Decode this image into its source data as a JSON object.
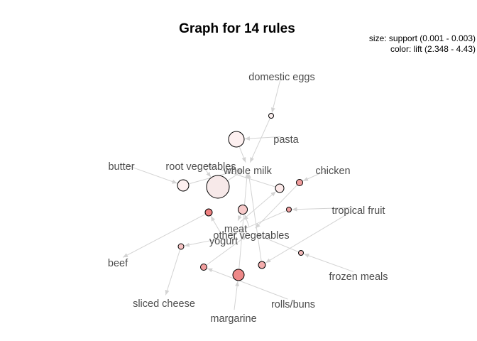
{
  "title": "Graph for 14 rules",
  "legend": {
    "size_text": "size: support (0.001 - 0.003)",
    "color_text": "color: lift (2.348 - 4.43)"
  },
  "colors": {
    "edge": "#d3d3d3",
    "label": "#4d4d4d",
    "lift_low": "#fcefef",
    "lift_high": "#ee8080"
  },
  "items": [
    {
      "id": "domestic-eggs",
      "label": "domestic eggs"
    },
    {
      "id": "pasta",
      "label": "pasta"
    },
    {
      "id": "butter",
      "label": "butter"
    },
    {
      "id": "root-vegetables",
      "label": "root vegetables"
    },
    {
      "id": "whole-milk",
      "label": "whole milk"
    },
    {
      "id": "chicken",
      "label": "chicken"
    },
    {
      "id": "tropical-fruit",
      "label": "tropical fruit"
    },
    {
      "id": "meat",
      "label": "meat"
    },
    {
      "id": "other-vegetables",
      "label": "other vegetables"
    },
    {
      "id": "yogurt",
      "label": "yogurt"
    },
    {
      "id": "beef",
      "label": "beef"
    },
    {
      "id": "frozen-meals",
      "label": "frozen meals"
    },
    {
      "id": "sliced-cheese",
      "label": "sliced cheese"
    },
    {
      "id": "rolls-buns",
      "label": "rolls/buns"
    },
    {
      "id": "margarine",
      "label": "margarine"
    }
  ],
  "rules": [
    {
      "id": "rule-1",
      "lhs": [
        "domestic-eggs"
      ],
      "rhs": [
        "whole-milk"
      ]
    },
    {
      "id": "rule-2",
      "lhs": [
        "pasta"
      ],
      "rhs": [
        "whole-milk"
      ]
    },
    {
      "id": "rule-3",
      "lhs": [
        "butter"
      ],
      "rhs": [
        "whole-milk"
      ]
    },
    {
      "id": "rule-4",
      "lhs": [
        "root-vegetables"
      ],
      "rhs": [
        "whole-milk"
      ]
    },
    {
      "id": "rule-5",
      "lhs": [
        "chicken"
      ],
      "rhs": [
        "other-vegetables"
      ]
    },
    {
      "id": "rule-6",
      "lhs": [
        "tropical-fruit"
      ],
      "rhs": [
        "yogurt"
      ]
    },
    {
      "id": "rule-7",
      "lhs": [
        "meat"
      ],
      "rhs": [
        "root-vegetables"
      ]
    },
    {
      "id": "rule-8",
      "lhs": [
        "other-vegetables"
      ],
      "rhs": [
        "meat"
      ]
    },
    {
      "id": "rule-9",
      "lhs": [
        "yogurt"
      ],
      "rhs": [
        "beef"
      ]
    },
    {
      "id": "rule-10",
      "lhs": [
        "frozen-meals"
      ],
      "rhs": [
        "other-vegetables"
      ]
    },
    {
      "id": "rule-11",
      "lhs": [
        "yogurt"
      ],
      "rhs": [
        "sliced-cheese"
      ]
    },
    {
      "id": "rule-12",
      "lhs": [
        "rolls-buns"
      ],
      "rhs": [
        "other-vegetables"
      ]
    },
    {
      "id": "rule-13",
      "lhs": [
        "margarine"
      ],
      "rhs": [
        "whole-milk"
      ]
    },
    {
      "id": "rule-14",
      "lhs": [
        "tropical-fruit"
      ],
      "rhs": [
        "whole-milk"
      ]
    }
  ]
}
